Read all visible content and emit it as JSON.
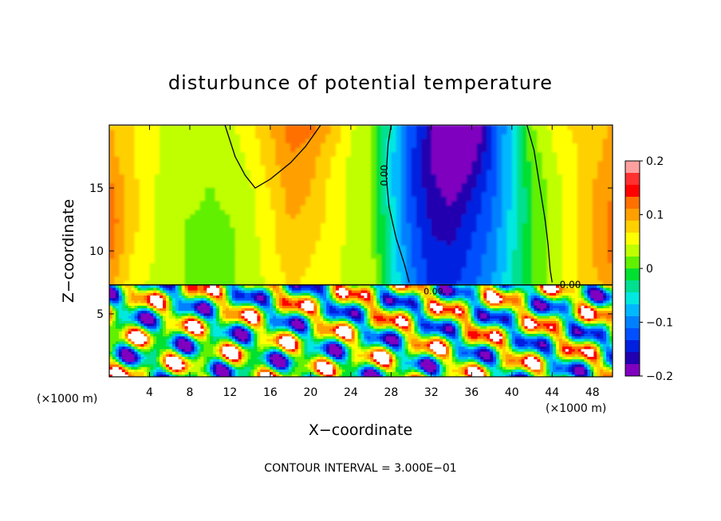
{
  "chart_data": {
    "type": "heatmap",
    "title": "disturbunce of potential temperature",
    "xlabel": "X−coordinate",
    "ylabel": "Z−coordinate",
    "x_unit_left": "(×1000 m)",
    "x_unit_right": "(×1000 m)",
    "xlim": [
      0,
      50
    ],
    "ylim": [
      0,
      20
    ],
    "x_ticks": [
      4,
      8,
      12,
      16,
      20,
      24,
      28,
      32,
      36,
      40,
      44,
      48
    ],
    "y_ticks": [
      5,
      10,
      15
    ],
    "colorbar": {
      "range": [
        -0.2,
        0.2
      ],
      "tick_values": [
        0.2,
        0.1,
        0,
        -0.1,
        -0.2
      ],
      "tick_labels": [
        "0.2",
        "0.1",
        "0",
        "−0.1",
        "−0.2"
      ],
      "colors": [
        "#ffa0a0",
        "#ff3030",
        "#ff0000",
        "#ff7000",
        "#ffa000",
        "#ffd000",
        "#ffff00",
        "#c0ff00",
        "#60f000",
        "#00e030",
        "#00e090",
        "#00e8e0",
        "#00b8ff",
        "#0080ff",
        "#0050ff",
        "#0020e0",
        "#2000b0",
        "#8000c0"
      ]
    },
    "contour_interval_text": "CONTOUR INTERVAL = 3.000E−01",
    "contour_labels": [
      "0.00",
      "0.00",
      "0.00",
      "0.00"
    ],
    "contours": [
      {
        "label": "0.00",
        "points": [
          [
            11.5,
            20
          ],
          [
            12.5,
            17.5
          ],
          [
            13.5,
            16
          ],
          [
            14.5,
            15
          ],
          [
            16,
            15.7
          ],
          [
            18,
            17
          ],
          [
            19.5,
            18.3
          ],
          [
            21,
            20
          ]
        ]
      },
      {
        "label": "0.00",
        "points": [
          [
            28,
            20
          ],
          [
            27.7,
            18.5
          ],
          [
            27.5,
            16
          ],
          [
            27.8,
            13.5
          ],
          [
            28.5,
            11
          ],
          [
            29.3,
            9
          ],
          [
            29.8,
            7.5
          ]
        ]
      },
      {
        "label": "0.00",
        "points": [
          [
            41.5,
            20
          ],
          [
            42.2,
            18
          ],
          [
            42.8,
            15
          ],
          [
            43.3,
            12.5
          ],
          [
            43.6,
            10.5
          ],
          [
            43.8,
            8.5
          ],
          [
            44,
            7.5
          ]
        ]
      }
    ],
    "tropopause_height": 7.3,
    "field": [
      [
        0.1,
        0.06,
        0.04,
        0.03,
        0.02,
        0.02,
        0.02,
        0.03,
        0.05,
        0.07,
        0.06,
        0.05,
        0.04,
        0.04,
        -0.04,
        -0.1,
        -0.14,
        -0.14,
        -0.12,
        -0.09,
        -0.05,
        0.0,
        0.03,
        0.06,
        0.08,
        0.1
      ],
      [
        0.12,
        0.07,
        0.05,
        0.03,
        0.02,
        0.02,
        0.02,
        0.03,
        0.06,
        0.08,
        0.07,
        0.05,
        0.04,
        0.03,
        -0.05,
        -0.11,
        -0.15,
        -0.15,
        -0.13,
        -0.1,
        -0.05,
        0.0,
        0.03,
        0.06,
        0.09,
        0.12
      ],
      [
        0.13,
        0.08,
        0.05,
        0.03,
        0.02,
        0.02,
        0.02,
        0.04,
        0.06,
        0.09,
        0.08,
        0.06,
        0.04,
        0.03,
        -0.05,
        -0.12,
        -0.16,
        -0.17,
        -0.14,
        -0.11,
        -0.06,
        0.0,
        0.03,
        0.06,
        0.09,
        0.12
      ],
      [
        0.12,
        0.08,
        0.05,
        0.03,
        0.03,
        0.02,
        0.03,
        0.04,
        0.07,
        0.1,
        0.09,
        0.06,
        0.04,
        0.02,
        -0.06,
        -0.13,
        -0.17,
        -0.19,
        -0.16,
        -0.12,
        -0.06,
        0.0,
        0.03,
        0.06,
        0.09,
        0.11
      ],
      [
        0.1,
        0.07,
        0.05,
        0.04,
        0.03,
        0.03,
        0.03,
        0.05,
        0.08,
        0.11,
        0.1,
        0.07,
        0.04,
        0.02,
        -0.06,
        -0.13,
        -0.18,
        -0.21,
        -0.19,
        -0.13,
        -0.06,
        0.01,
        0.04,
        0.06,
        0.08,
        0.1
      ],
      [
        0.09,
        0.07,
        0.05,
        0.04,
        0.04,
        0.03,
        0.04,
        0.06,
        0.09,
        0.12,
        0.12,
        0.09,
        0.05,
        0.02,
        -0.05,
        -0.12,
        -0.17,
        -0.23,
        -0.22,
        -0.14,
        -0.06,
        0.02,
        0.05,
        0.07,
        0.08,
        0.09
      ]
    ]
  }
}
